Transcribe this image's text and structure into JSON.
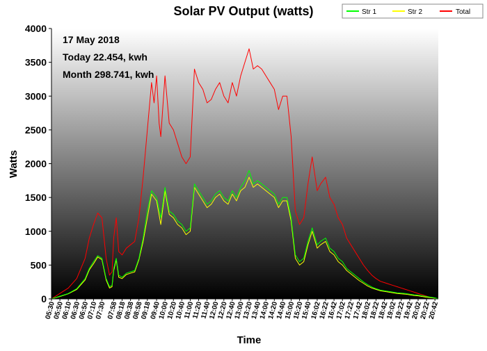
{
  "chart_data": {
    "type": "line",
    "title": "Solar PV Output (watts)",
    "xlabel": "Time",
    "ylabel": "Watts",
    "ylim": [
      0,
      4000
    ],
    "yticks": [
      0,
      500,
      1000,
      1500,
      2000,
      2500,
      3000,
      3500,
      4000
    ],
    "x_start": "05:30",
    "x_end": "20:50",
    "xtick_labels": [
      "05:30",
      "05:50",
      "06:10",
      "06:30",
      "06:50",
      "07:10",
      "07:30",
      "07:58",
      "08:18",
      "08:38",
      "08:58",
      "09:18",
      "09:40",
      "10:00",
      "10:20",
      "10:40",
      "11:00",
      "11:20",
      "11:40",
      "12:00",
      "12:20",
      "12:40",
      "13:00",
      "13:20",
      "13:40",
      "14:00",
      "14:20",
      "14:40",
      "15:00",
      "15:20",
      "15:40",
      "16:02",
      "16:22",
      "16:42",
      "17:02",
      "17:22",
      "17:42",
      "18:02",
      "18:22",
      "18:42",
      "19:02",
      "19:22",
      "19:42",
      "20:02",
      "20:22",
      "20:42"
    ],
    "annotations": [
      "17 May 2018",
      "Today 22.454, kwh",
      "Month 298.741, kwh"
    ],
    "grid": false,
    "legend_position": "top-right",
    "background": "gradient-white-to-black",
    "series": [
      {
        "name": "Str 1",
        "color": "#00ff00",
        "x": [
          "05:30",
          "05:50",
          "06:10",
          "06:30",
          "06:50",
          "07:00",
          "07:10",
          "07:20",
          "07:30",
          "07:40",
          "07:48",
          "07:54",
          "07:58",
          "08:04",
          "08:10",
          "08:18",
          "08:28",
          "08:38",
          "08:48",
          "08:58",
          "09:08",
          "09:18",
          "09:28",
          "09:40",
          "09:50",
          "10:00",
          "10:10",
          "10:20",
          "10:30",
          "10:40",
          "10:50",
          "11:00",
          "11:10",
          "11:20",
          "11:30",
          "11:40",
          "11:50",
          "12:00",
          "12:10",
          "12:20",
          "12:30",
          "12:40",
          "12:50",
          "13:00",
          "13:10",
          "13:20",
          "13:30",
          "13:40",
          "13:50",
          "14:00",
          "14:10",
          "14:20",
          "14:30",
          "14:40",
          "14:50",
          "15:00",
          "15:10",
          "15:20",
          "15:30",
          "15:40",
          "15:50",
          "16:02",
          "16:10",
          "16:22",
          "16:32",
          "16:42",
          "16:52",
          "17:02",
          "17:12",
          "17:22",
          "17:32",
          "17:42",
          "17:52",
          "18:02",
          "18:12",
          "18:22",
          "18:32",
          "18:42",
          "18:52",
          "19:02",
          "19:12",
          "19:22",
          "19:32",
          "19:42",
          "19:52",
          "20:02",
          "20:12",
          "20:22",
          "20:32",
          "20:42",
          "20:50"
        ],
        "values": [
          0,
          40,
          80,
          150,
          300,
          450,
          550,
          640,
          600,
          300,
          180,
          200,
          450,
          600,
          350,
          320,
          380,
          400,
          420,
          600,
          900,
          1300,
          1600,
          1500,
          1200,
          1650,
          1300,
          1250,
          1150,
          1100,
          1000,
          1050,
          1700,
          1600,
          1500,
          1400,
          1450,
          1550,
          1600,
          1500,
          1450,
          1600,
          1500,
          1650,
          1750,
          1900,
          1700,
          1750,
          1700,
          1650,
          1600,
          1550,
          1400,
          1500,
          1500,
          1200,
          650,
          550,
          600,
          850,
          1050,
          800,
          850,
          900,
          750,
          700,
          600,
          550,
          450,
          400,
          350,
          300,
          250,
          210,
          175,
          150,
          130,
          120,
          110,
          100,
          90,
          85,
          80,
          70,
          60,
          55,
          45,
          35,
          25,
          15,
          0
        ]
      },
      {
        "name": "Str 2",
        "color": "#ffff00",
        "x": [
          "05:30",
          "05:50",
          "06:10",
          "06:30",
          "06:50",
          "07:00",
          "07:10",
          "07:20",
          "07:30",
          "07:40",
          "07:48",
          "07:54",
          "07:58",
          "08:04",
          "08:10",
          "08:18",
          "08:28",
          "08:38",
          "08:48",
          "08:58",
          "09:08",
          "09:18",
          "09:28",
          "09:40",
          "09:50",
          "10:00",
          "10:10",
          "10:20",
          "10:30",
          "10:40",
          "10:50",
          "11:00",
          "11:10",
          "11:20",
          "11:30",
          "11:40",
          "11:50",
          "12:00",
          "12:10",
          "12:20",
          "12:30",
          "12:40",
          "12:50",
          "13:00",
          "13:10",
          "13:20",
          "13:30",
          "13:40",
          "13:50",
          "14:00",
          "14:10",
          "14:20",
          "14:30",
          "14:40",
          "14:50",
          "15:00",
          "15:10",
          "15:20",
          "15:30",
          "15:40",
          "15:50",
          "16:02",
          "16:10",
          "16:22",
          "16:32",
          "16:42",
          "16:52",
          "17:02",
          "17:12",
          "17:22",
          "17:32",
          "17:42",
          "17:52",
          "18:02",
          "18:12",
          "18:22",
          "18:32",
          "18:42",
          "18:52",
          "19:02",
          "19:12",
          "19:22",
          "19:32",
          "19:42",
          "19:52",
          "20:02",
          "20:12",
          "20:22",
          "20:32",
          "20:42",
          "20:50"
        ],
        "values": [
          0,
          35,
          75,
          140,
          280,
          430,
          520,
          620,
          580,
          280,
          160,
          180,
          420,
          580,
          320,
          300,
          360,
          380,
          400,
          580,
          850,
          1200,
          1550,
          1450,
          1100,
          1600,
          1250,
          1200,
          1100,
          1050,
          950,
          1000,
          1650,
          1550,
          1450,
          1350,
          1400,
          1500,
          1550,
          1450,
          1400,
          1550,
          1450,
          1600,
          1650,
          1800,
          1650,
          1700,
          1650,
          1600,
          1550,
          1500,
          1350,
          1450,
          1450,
          1150,
          600,
          500,
          550,
          800,
          1000,
          750,
          800,
          850,
          700,
          650,
          550,
          500,
          420,
          370,
          320,
          270,
          230,
          190,
          160,
          140,
          120,
          110,
          100,
          90,
          80,
          75,
          70,
          60,
          50,
          45,
          35,
          25,
          18,
          10,
          0
        ]
      },
      {
        "name": "Total",
        "color": "#ff0000",
        "x": [
          "05:30",
          "05:50",
          "06:10",
          "06:30",
          "06:50",
          "07:00",
          "07:10",
          "07:20",
          "07:30",
          "07:40",
          "07:48",
          "07:54",
          "07:58",
          "08:04",
          "08:10",
          "08:18",
          "08:28",
          "08:38",
          "08:48",
          "08:58",
          "09:08",
          "09:18",
          "09:28",
          "09:34",
          "09:40",
          "09:46",
          "09:50",
          "10:00",
          "10:10",
          "10:20",
          "10:30",
          "10:40",
          "10:50",
          "11:00",
          "11:10",
          "11:20",
          "11:30",
          "11:40",
          "11:50",
          "12:00",
          "12:10",
          "12:20",
          "12:30",
          "12:40",
          "12:50",
          "13:00",
          "13:10",
          "13:20",
          "13:30",
          "13:40",
          "13:50",
          "14:00",
          "14:10",
          "14:20",
          "14:30",
          "14:40",
          "14:50",
          "15:00",
          "15:10",
          "15:20",
          "15:30",
          "15:40",
          "15:50",
          "16:02",
          "16:10",
          "16:22",
          "16:32",
          "16:42",
          "16:52",
          "17:02",
          "17:12",
          "17:22",
          "17:32",
          "17:42",
          "17:52",
          "18:02",
          "18:12",
          "18:22",
          "18:32",
          "18:42",
          "18:52",
          "19:02",
          "19:12",
          "19:22",
          "19:32",
          "19:42",
          "19:52",
          "20:02",
          "20:12",
          "20:22",
          "20:32",
          "20:42",
          "20:50"
        ],
        "values": [
          0,
          80,
          160,
          300,
          600,
          900,
          1100,
          1270,
          1200,
          600,
          350,
          400,
          900,
          1200,
          700,
          650,
          750,
          800,
          850,
          1200,
          1800,
          2500,
          3200,
          2900,
          3300,
          2600,
          2400,
          3300,
          2600,
          2500,
          2300,
          2100,
          2000,
          2100,
          3400,
          3200,
          3100,
          2900,
          2950,
          3100,
          3200,
          3000,
          2900,
          3200,
          3000,
          3300,
          3500,
          3700,
          3400,
          3450,
          3400,
          3300,
          3200,
          3100,
          2800,
          3000,
          3000,
          2400,
          1300,
          1100,
          1200,
          1700,
          2100,
          1600,
          1700,
          1800,
          1500,
          1400,
          1200,
          1100,
          900,
          800,
          700,
          600,
          500,
          420,
          350,
          300,
          260,
          240,
          220,
          200,
          180,
          160,
          140,
          120,
          100,
          80,
          60,
          40,
          20,
          10,
          0
        ]
      }
    ]
  }
}
